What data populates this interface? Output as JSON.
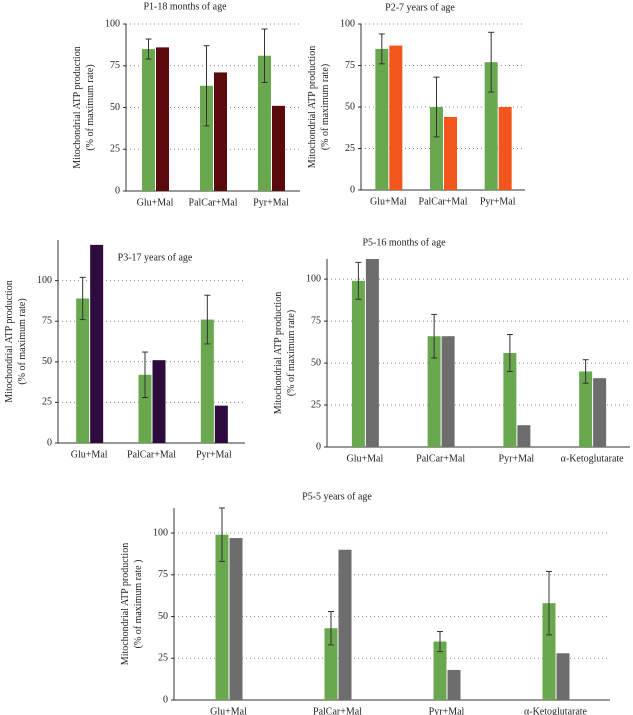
{
  "chart_data": [
    {
      "type": "bar",
      "title": "P1-18 months of age",
      "ylabel": [
        "Mitochondrial ATP production",
        "(% of maximum rate)"
      ],
      "categories": [
        "Glu+Mal",
        "PalCar+Mal",
        "Pyr+Mal"
      ],
      "series": [
        {
          "color": "#6aa84f",
          "values": [
            85,
            63,
            81
          ],
          "errors": [
            6,
            24,
            16
          ]
        },
        {
          "color": "#5a0a0c",
          "values": [
            86,
            71,
            51
          ]
        }
      ],
      "ylim": [
        0,
        100
      ],
      "yticks": [
        0,
        25,
        50,
        75,
        100
      ],
      "grid": true
    },
    {
      "type": "bar",
      "title": "P2-7 years of age",
      "ylabel": [
        "Mitochondrial ATP production",
        "(% of maximum rate)"
      ],
      "categories": [
        "Glu+Mal",
        "PalCar+Mal",
        "Pyr+Mal"
      ],
      "series": [
        {
          "color": "#6aa84f",
          "values": [
            85,
            50,
            77
          ],
          "errors": [
            9,
            18,
            18
          ]
        },
        {
          "color": "#f2561d",
          "values": [
            87,
            44,
            50
          ]
        }
      ],
      "ylim": [
        0,
        100
      ],
      "yticks": [
        0,
        25,
        50,
        75,
        100
      ],
      "grid": true
    },
    {
      "type": "bar",
      "title": "P3-17 years of age",
      "ylabel": [
        "Mitochondrial ATP production",
        "(% of maximum rate)"
      ],
      "categories": [
        "Glu+Mal",
        "PalCar+Mal",
        "Pyr+Mal"
      ],
      "series": [
        {
          "color": "#6aa84f",
          "values": [
            89,
            42,
            76
          ],
          "errors": [
            13,
            14,
            15
          ]
        },
        {
          "color": "#2e0b3d",
          "values": [
            122,
            51,
            23
          ]
        }
      ],
      "ylim": [
        0,
        125
      ],
      "yticks": [
        0,
        25,
        50,
        75,
        100
      ],
      "grid": true
    },
    {
      "type": "bar",
      "title": "P5-16 months of age",
      "ylabel": [
        "Mitochondrial ATP production",
        "(% of maximum rate)"
      ],
      "categories": [
        "Glu+Mal",
        "PalCar+Mal",
        "Pyr+Mal",
        "α-Ketoglutarate"
      ],
      "series": [
        {
          "color": "#6aa84f",
          "values": [
            99,
            66,
            56,
            45
          ],
          "errors": [
            11,
            13,
            11,
            7
          ]
        },
        {
          "color": "#6d6d6d",
          "values": [
            112,
            66,
            13,
            41
          ]
        }
      ],
      "ylim": [
        0,
        112
      ],
      "yticks": [
        0,
        25,
        50,
        75,
        100
      ],
      "grid": true
    },
    {
      "type": "bar",
      "title": "P5-5 years of age",
      "ylabel": [
        "Mitochondrial ATP production",
        "(% of maximum rate )"
      ],
      "categories": [
        "Glu+Mal",
        "PalCar+Mal",
        "Pyr+Mal",
        "α-Ketoglutarate"
      ],
      "series": [
        {
          "color": "#6aa84f",
          "values": [
            99,
            43,
            35,
            58
          ],
          "errors": [
            16,
            10,
            6,
            19
          ]
        },
        {
          "color": "#6d6d6d",
          "values": [
            97,
            90,
            18,
            28
          ]
        }
      ],
      "ylim": [
        0,
        115
      ],
      "yticks": [
        0,
        25,
        50,
        75,
        100
      ],
      "grid": true
    }
  ]
}
